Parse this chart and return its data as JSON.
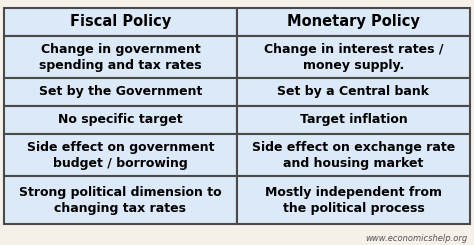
{
  "headers": [
    "Fiscal Policy",
    "Monetary Policy"
  ],
  "rows": [
    [
      "Change in government\nspending and tax rates",
      "Change in interest rates /\nmoney supply."
    ],
    [
      "Set by the Government",
      "Set by a Central bank"
    ],
    [
      "No specific target",
      "Target inflation"
    ],
    [
      "Side effect on government\nbudget / borrowing",
      "Side effect on exchange rate\nand housing market"
    ],
    [
      "Strong political dimension to\nchanging tax rates",
      "Mostly independent from\nthe political process"
    ]
  ],
  "header_bg": "#dce9f8",
  "header_text_color": "#000000",
  "row_bg": "#dce9f8",
  "border_color": "#4a4a4a",
  "text_color": "#000000",
  "watermark": "www.economicshelp.org",
  "bg_color": "#f5f0e8",
  "header_fontsize": 10.5,
  "cell_fontsize": 9.0
}
